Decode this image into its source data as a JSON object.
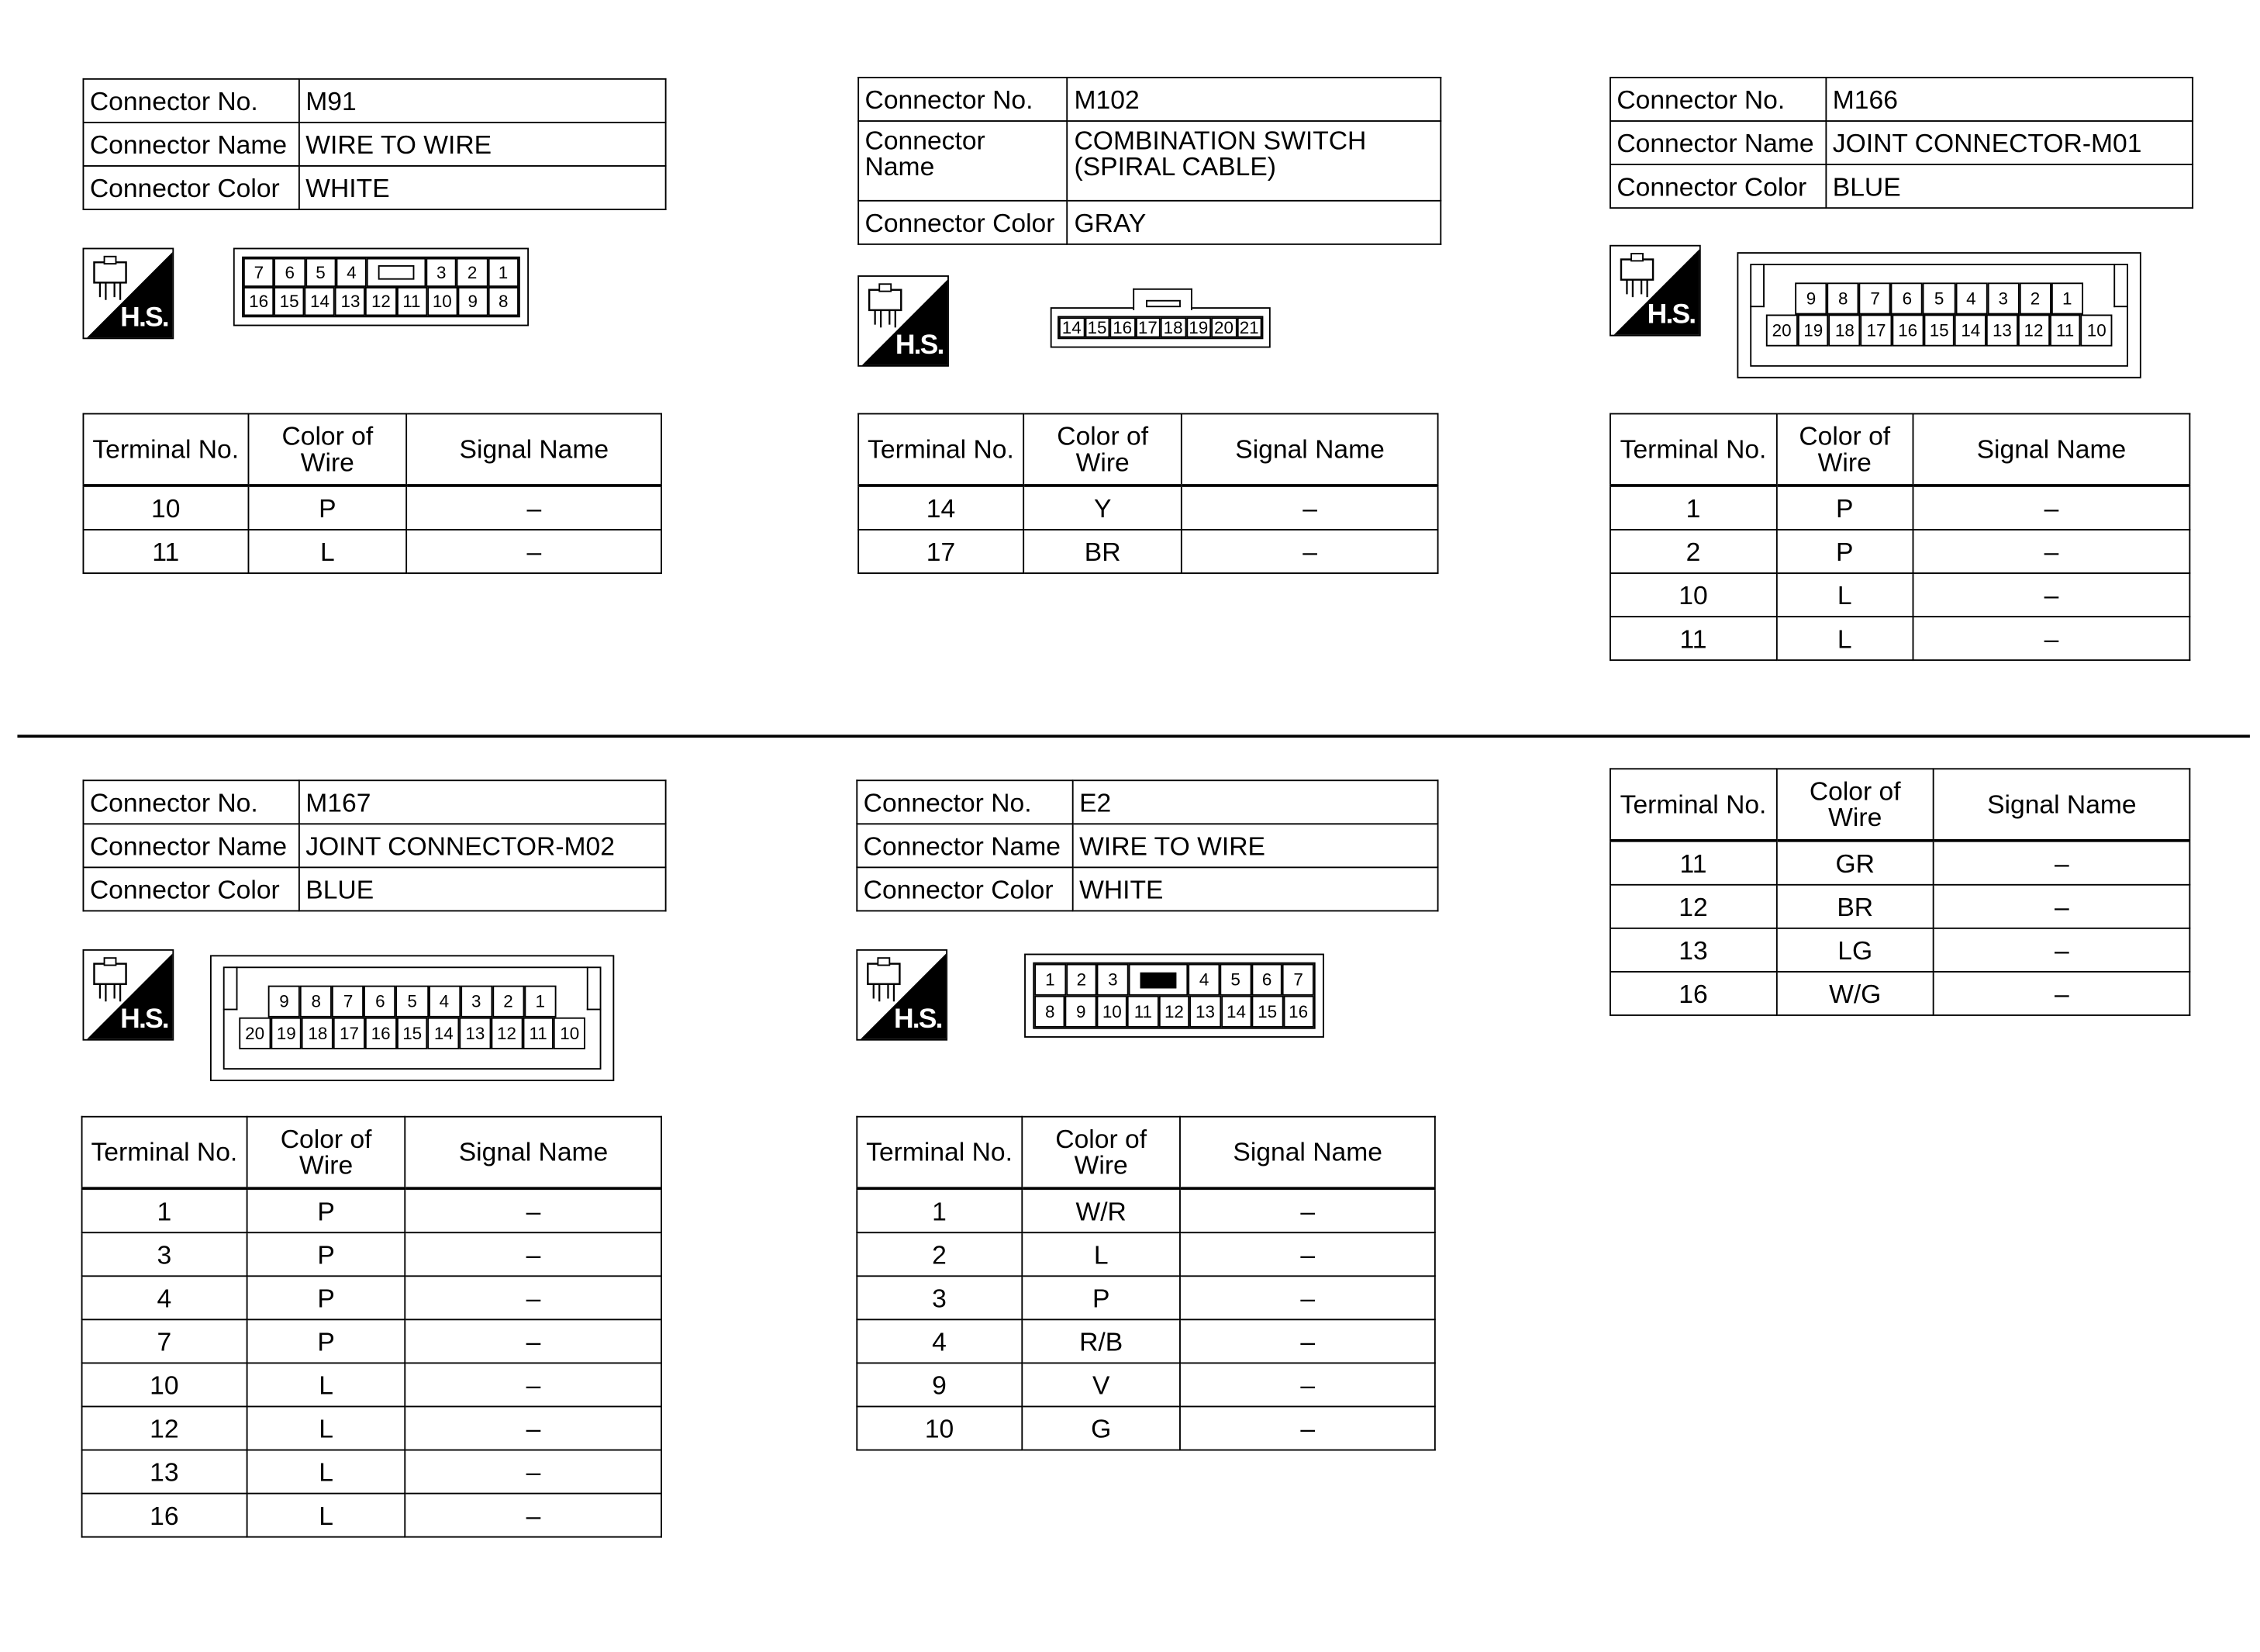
{
  "labels": {
    "connector_no": "Connector No.",
    "connector_name": "Connector Name",
    "connector_color": "Connector Color",
    "terminal_no": "Terminal No.",
    "color_of_wire": "Color of Wire",
    "signal_name": "Signal Name",
    "hs_badge": "H.S."
  },
  "connectors": [
    {
      "no": "M91",
      "name": "WIRE TO WIRE",
      "color": "WHITE",
      "pins": {
        "type": "two-row",
        "rows": [
          [
            "7",
            "6",
            "5",
            "4",
            "KEY",
            "3",
            "2",
            "1"
          ],
          [
            "16",
            "15",
            "14",
            "13",
            "12",
            "11",
            "10",
            "9",
            "8"
          ]
        ]
      },
      "terminals": [
        [
          "10",
          "P",
          "–"
        ],
        [
          "11",
          "L",
          "–"
        ]
      ]
    },
    {
      "no": "M102",
      "name": "COMBINATION SWITCH (SPIRAL CABLE)",
      "color": "GRAY",
      "pins": {
        "type": "single-row-tab",
        "rows": [
          [
            "14",
            "15",
            "16",
            "17",
            "18",
            "19",
            "20",
            "21"
          ]
        ]
      },
      "terminals": [
        [
          "14",
          "Y",
          "–"
        ],
        [
          "17",
          "BR",
          "–"
        ]
      ]
    },
    {
      "no": "M166",
      "name": "JOINT CONNECTOR-M01",
      "color": "BLUE",
      "pins": {
        "type": "framed",
        "rows": [
          [
            "",
            "9",
            "8",
            "7",
            "6",
            "5",
            "4",
            "3",
            "2",
            "1",
            ""
          ],
          [
            "20",
            "19",
            "18",
            "17",
            "16",
            "15",
            "14",
            "13",
            "12",
            "11",
            "10"
          ]
        ]
      },
      "terminals": [
        [
          "1",
          "P",
          "–"
        ],
        [
          "2",
          "P",
          "–"
        ],
        [
          "10",
          "L",
          "–"
        ],
        [
          "11",
          "L",
          "–"
        ]
      ]
    },
    {
      "no": "M167",
      "name": "JOINT CONNECTOR-M02",
      "color": "BLUE",
      "pins": {
        "type": "framed",
        "rows": [
          [
            "",
            "9",
            "8",
            "7",
            "6",
            "5",
            "4",
            "3",
            "2",
            "1",
            ""
          ],
          [
            "20",
            "19",
            "18",
            "17",
            "16",
            "15",
            "14",
            "13",
            "12",
            "11",
            "10"
          ]
        ]
      },
      "terminals": [
        [
          "1",
          "P",
          "–"
        ],
        [
          "3",
          "P",
          "–"
        ],
        [
          "4",
          "P",
          "–"
        ],
        [
          "7",
          "P",
          "–"
        ],
        [
          "10",
          "L",
          "–"
        ],
        [
          "12",
          "L",
          "–"
        ],
        [
          "13",
          "L",
          "–"
        ],
        [
          "16",
          "L",
          "–"
        ]
      ]
    },
    {
      "no": "E2",
      "name": "WIRE TO WIRE",
      "color": "WHITE",
      "pins": {
        "type": "two-row",
        "key_filled": true,
        "rows": [
          [
            "1",
            "2",
            "3",
            "KEY",
            "4",
            "5",
            "6",
            "7"
          ],
          [
            "8",
            "9",
            "10",
            "11",
            "12",
            "13",
            "14",
            "15",
            "16"
          ]
        ]
      },
      "terminals": [
        [
          "1",
          "W/R",
          "–"
        ],
        [
          "2",
          "L",
          "–"
        ],
        [
          "3",
          "P",
          "–"
        ],
        [
          "4",
          "R/B",
          "–"
        ],
        [
          "9",
          "V",
          "–"
        ],
        [
          "10",
          "G",
          "–"
        ]
      ]
    }
  ],
  "continuation_table": {
    "terminals": [
      [
        "11",
        "GR",
        "–"
      ],
      [
        "12",
        "BR",
        "–"
      ],
      [
        "13",
        "LG",
        "–"
      ],
      [
        "16",
        "W/G",
        "–"
      ]
    ]
  }
}
